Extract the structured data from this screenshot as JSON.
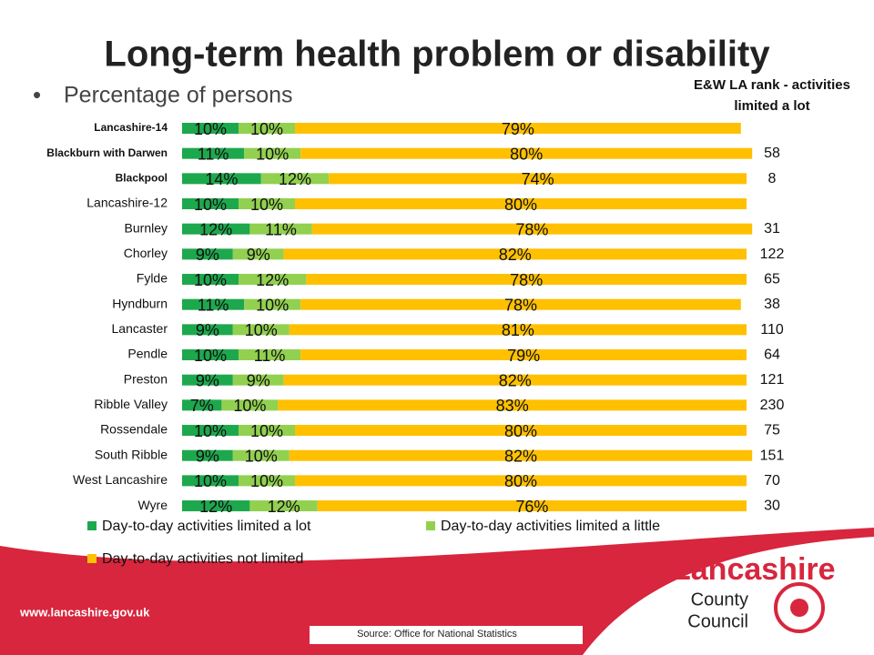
{
  "chart_data": {
    "type": "stacked-barh",
    "title": "Long-term health problem or disability",
    "subtitle": "Percentage of persons",
    "categories": [
      "Lancashire-14",
      "Blackburn with Darwen",
      "Blackpool",
      "Lancashire-12",
      "Burnley",
      "Chorley",
      "Fylde",
      "Hyndburn",
      "Lancaster",
      "Pendle",
      "Preston",
      "Ribble Valley",
      "Rossendale",
      "South Ribble",
      "West Lancashire",
      "Wyre"
    ],
    "series": [
      {
        "name": "Day-to-day activities limited a lot",
        "color": "#1ea84e",
        "values": [
          10,
          11,
          14,
          10,
          12,
          9,
          10,
          11,
          9,
          10,
          9,
          7,
          10,
          9,
          10,
          12
        ],
        "value_labels": [
          "10%",
          "11%",
          "14%",
          "10%",
          "12%",
          "9%",
          "10%",
          "11%",
          "9%",
          "10%",
          "9%",
          "7%",
          "10%",
          "9%",
          "10%",
          "12%"
        ]
      },
      {
        "name": "Day-to-day activities limited a little",
        "color": "#92d050",
        "values": [
          10,
          10,
          12,
          10,
          11,
          9,
          12,
          10,
          10,
          11,
          9,
          10,
          10,
          10,
          10,
          12
        ],
        "value_labels": [
          "10%",
          "10%",
          "12%",
          "10%",
          "11%",
          "9%",
          "12%",
          "10%",
          "10%",
          "11%",
          "9%",
          "10%",
          "10%",
          "10%",
          "10%",
          "12%"
        ]
      },
      {
        "name": "Day-to-day activities not limited",
        "color": "#ffc000",
        "values": [
          79,
          80,
          74,
          80,
          78,
          82,
          78,
          78,
          81,
          79,
          82,
          83,
          80,
          82,
          80,
          76
        ],
        "value_labels": [
          "79%",
          "80%",
          "74%",
          "80%",
          "78%",
          "82%",
          "78%",
          "78%",
          "81%",
          "79%",
          "82%",
          "83%",
          "80%",
          "82%",
          "80%",
          "76%"
        ]
      }
    ],
    "rank": {
      "title": "E&W LA rank - activities limited a lot",
      "values": [
        null,
        58,
        8,
        null,
        31,
        122,
        65,
        38,
        110,
        64,
        121,
        230,
        75,
        151,
        70,
        30
      ]
    },
    "source": "Source: Office for National Statistics"
  },
  "footer": {
    "website": "www.lancashire.gov.uk",
    "logo": [
      "Lancashire",
      "County",
      "Council"
    ]
  }
}
